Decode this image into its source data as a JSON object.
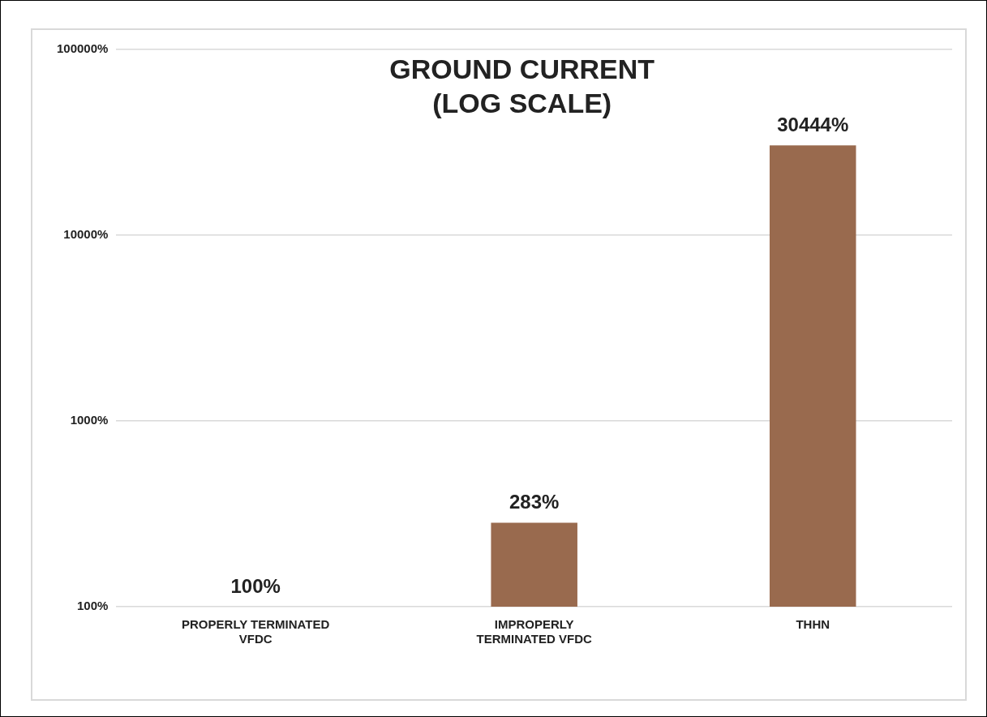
{
  "chart_data": {
    "type": "bar",
    "title": "GROUND CURRENT\n(LOG SCALE)",
    "categories": [
      "PROPERLY TERMINATED VFDC",
      "IMPROPERLY TERMINATED VFDC",
      "THHN"
    ],
    "values": [
      100,
      283,
      30444
    ],
    "value_labels": [
      "100%",
      "283%",
      "30444%"
    ],
    "color": "#996a4e",
    "log": true,
    "ylim": [
      100,
      100000
    ],
    "yticks": [
      {
        "value": 100,
        "label": "100%"
      },
      {
        "value": 1000,
        "label": "1000%"
      },
      {
        "value": 10000,
        "label": "10000%"
      },
      {
        "value": 100000,
        "label": "100000%"
      }
    ],
    "grid": "y"
  }
}
